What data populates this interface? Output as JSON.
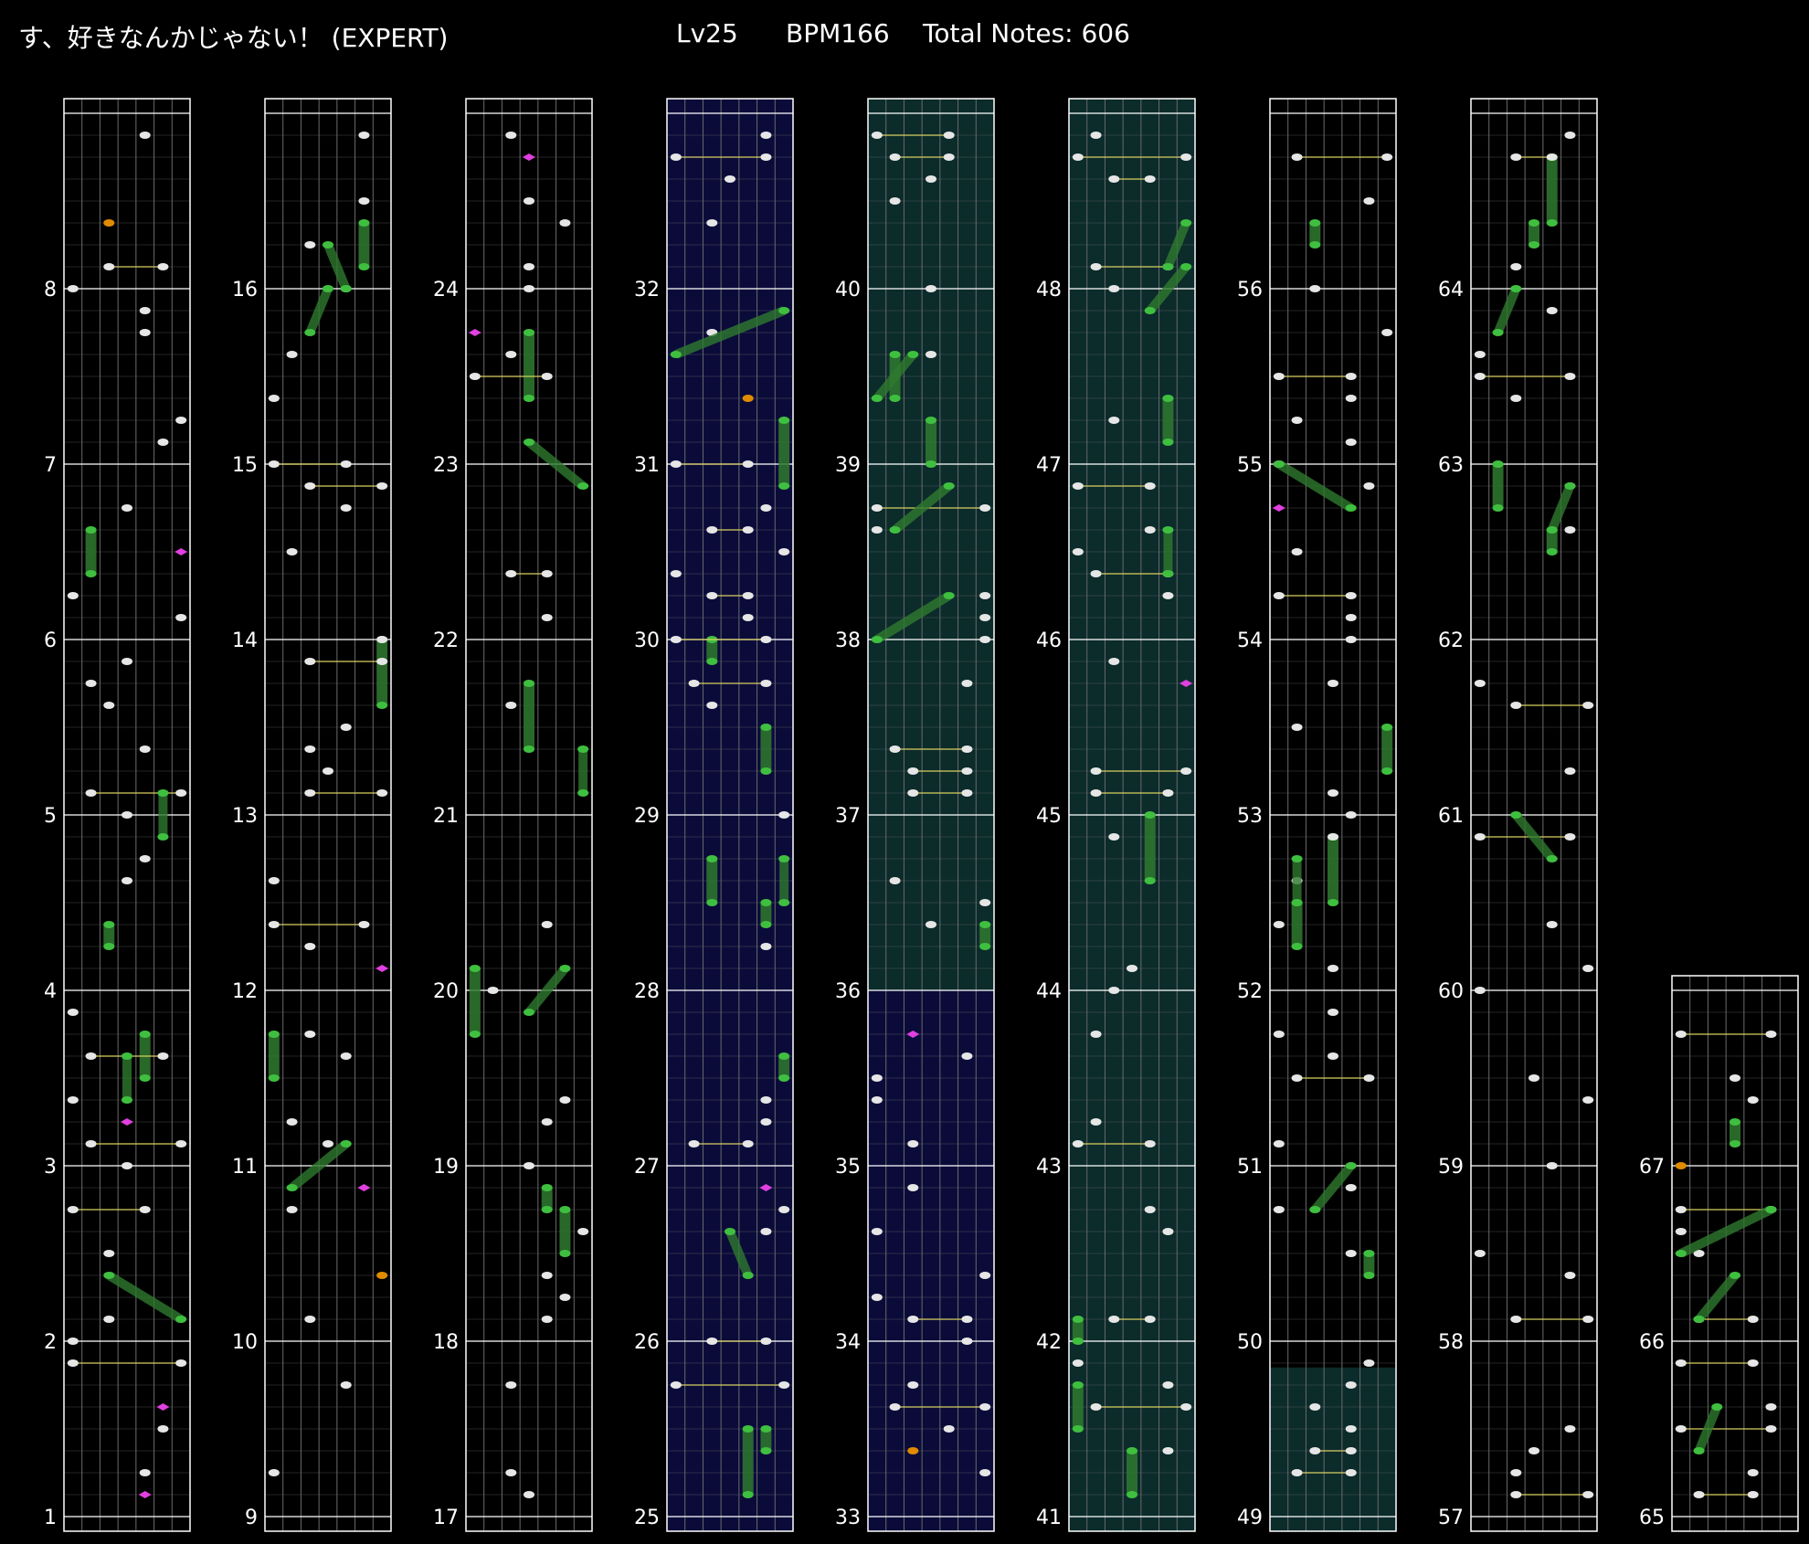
{
  "header": {
    "title": "す、好きなんかじゃない！ (EXPERT)",
    "level": "Lv25",
    "bpm": "BPM166",
    "total_notes": "Total Notes: 606"
  },
  "colors": {
    "background": "#000000",
    "grid_major": "#ffffff",
    "grid_minor": "#6a6a6a",
    "tap_note": "#e6e6e6",
    "hold_note": "#3fbf3f",
    "hold_body": "#2f7a2f",
    "flick_note": "#e040e0",
    "special_note": "#e08a00",
    "sync_line": "#d8d060",
    "region_navy": "#0b0b3a",
    "region_teal": "#0c2b2b"
  },
  "columns": [
    {
      "measures": [
        "1",
        "2",
        "3",
        "4",
        "5",
        "6",
        "7",
        "8"
      ],
      "bg": "none"
    },
    {
      "measures": [
        "9",
        "10",
        "11",
        "12",
        "13",
        "14",
        "15",
        "16"
      ],
      "bg": "none"
    },
    {
      "measures": [
        "17",
        "18",
        "19",
        "20",
        "21",
        "22",
        "23",
        "24"
      ],
      "bg": "none"
    },
    {
      "measures": [
        "25",
        "26",
        "27",
        "28",
        "29",
        "30",
        "31",
        "32"
      ],
      "bg": "navy"
    },
    {
      "measures": [
        "33",
        "34",
        "35",
        "36",
        "37",
        "38",
        "39",
        "40"
      ],
      "bg": "navy-teal"
    },
    {
      "measures": [
        "41",
        "42",
        "43",
        "44",
        "45",
        "46",
        "47",
        "48"
      ],
      "bg": "teal"
    },
    {
      "measures": [
        "49",
        "50",
        "51",
        "52",
        "53",
        "54",
        "55",
        "56"
      ],
      "bg": "partial-teal"
    },
    {
      "measures": [
        "57",
        "58",
        "59",
        "60",
        "61",
        "62",
        "63",
        "64"
      ],
      "bg": "none"
    },
    {
      "measures": [
        "65",
        "66",
        "67"
      ],
      "bg": "none"
    }
  ]
}
